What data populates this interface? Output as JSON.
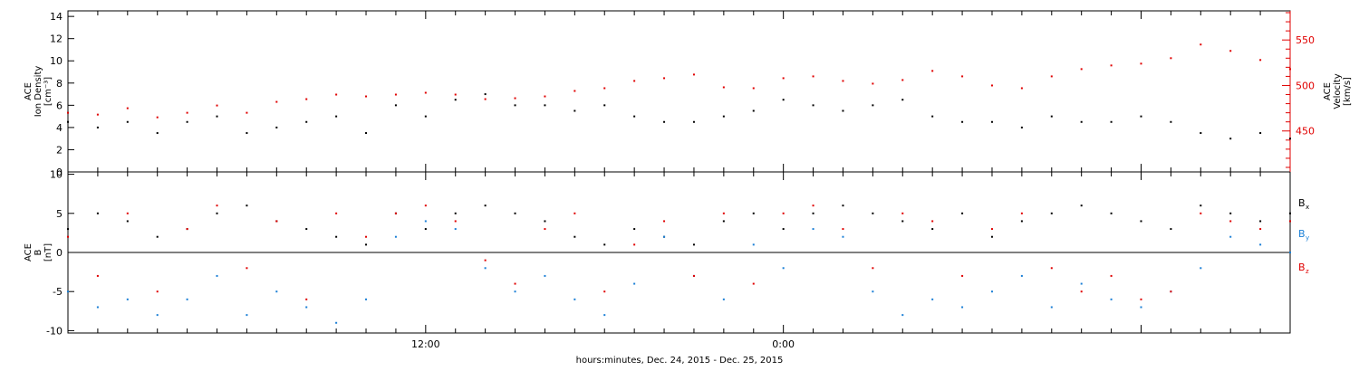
{
  "chart_data": [
    {
      "type": "scatter",
      "panel": "top",
      "left_axis": {
        "label_lines": [
          "ACE",
          "Ion Density",
          "[cm⁻³]"
        ],
        "ylim": [
          0,
          14.5
        ],
        "ticks": [
          "0",
          "2",
          "4",
          "6",
          "8",
          "10",
          "12",
          "14"
        ],
        "tick_values": [
          0,
          2,
          4,
          6,
          8,
          10,
          12,
          14
        ],
        "color": "#000000"
      },
      "right_axis": {
        "label_lines": [
          "ACE",
          "Velocity",
          "[km/s]"
        ],
        "ylim": [
          405,
          582
        ],
        "ticks": [
          "450",
          "500",
          "550"
        ],
        "tick_values": [
          450,
          500,
          550
        ],
        "color": "#e00000"
      },
      "series": [
        {
          "axis": "left",
          "color": "#000000",
          "x": [
            0.0,
            1.0,
            2.0,
            3.0,
            4.0,
            5.0,
            6.0,
            7.0,
            8.0,
            9.0,
            10.0,
            11.0,
            12.0,
            13.0,
            14.0,
            15.0,
            16.0,
            17.0,
            18.0,
            19.0,
            20.0,
            21.0,
            22.0,
            23.0,
            24.0,
            25.0,
            26.0,
            27.0,
            28.0,
            29.0,
            30.0,
            31.0,
            32.0,
            33.0,
            34.0,
            35.0,
            36.0,
            37.0,
            38.0,
            39.0,
            40.0,
            41.0
          ],
          "values": [
            4.5,
            4.0,
            4.5,
            3.5,
            4.5,
            5.0,
            3.5,
            4.0,
            4.5,
            5.0,
            3.5,
            6.0,
            5.0,
            6.5,
            7.0,
            6.0,
            6.0,
            5.5,
            6.0,
            5.0,
            4.5,
            4.5,
            5.0,
            5.5,
            6.5,
            6.0,
            5.5,
            6.0,
            6.5,
            5.0,
            4.5,
            4.5,
            4.0,
            5.0,
            4.5,
            4.5,
            5.0,
            4.5,
            3.5,
            3.0,
            3.5,
            3.0
          ]
        },
        {
          "axis": "right",
          "color": "#e00000",
          "x": [
            0.0,
            1.0,
            2.0,
            3.0,
            4.0,
            5.0,
            6.0,
            7.0,
            8.0,
            9.0,
            10.0,
            11.0,
            12.0,
            13.0,
            14.0,
            15.0,
            16.0,
            17.0,
            18.0,
            19.0,
            20.0,
            21.0,
            22.0,
            23.0,
            24.0,
            25.0,
            26.0,
            27.0,
            28.0,
            29.0,
            30.0,
            31.0,
            32.0,
            33.0,
            34.0,
            35.0,
            36.0,
            37.0,
            38.0,
            39.0,
            40.0,
            41.0
          ],
          "values": [
            470,
            468,
            475,
            465,
            470,
            478,
            470,
            482,
            485,
            490,
            488,
            490,
            492,
            490,
            485,
            486,
            488,
            494,
            497,
            505,
            508,
            512,
            498,
            497,
            508,
            510,
            505,
            502,
            506,
            516,
            510,
            500,
            497,
            510,
            518,
            522,
            524,
            530,
            545,
            538,
            528,
            518
          ]
        }
      ]
    },
    {
      "type": "scatter",
      "panel": "bottom",
      "left_axis": {
        "label_lines": [
          "ACE",
          "B",
          "[nT]"
        ],
        "ylim": [
          -10.3,
          10.3
        ],
        "ticks": [
          "-10",
          "-5",
          "0",
          "5",
          "10"
        ],
        "tick_values": [
          -10,
          -5,
          0,
          5,
          10
        ]
      },
      "zero_line": true,
      "series": [
        {
          "name": "B",
          "sub": "x",
          "color": "#000000",
          "x": [
            0.0,
            1.0,
            2.0,
            3.0,
            4.0,
            5.0,
            6.0,
            7.0,
            8.0,
            9.0,
            10.0,
            11.0,
            12.0,
            13.0,
            14.0,
            15.0,
            16.0,
            17.0,
            18.0,
            19.0,
            20.0,
            21.0,
            22.0,
            23.0,
            24.0,
            25.0,
            26.0,
            27.0,
            28.0,
            29.0,
            30.0,
            31.0,
            32.0,
            33.0,
            34.0,
            35.0,
            36.0,
            37.0,
            38.0,
            39.0,
            40.0,
            41.0
          ],
          "values": [
            3,
            5,
            4,
            2,
            3,
            5,
            6,
            4,
            3,
            2,
            1,
            5,
            3,
            5,
            6,
            5,
            4,
            2,
            1,
            3,
            2,
            1,
            4,
            5,
            3,
            5,
            6,
            5,
            4,
            3,
            5,
            2,
            4,
            5,
            6,
            5,
            4,
            3,
            6,
            5,
            4,
            5
          ]
        },
        {
          "name": "B",
          "sub": "y",
          "color": "#1a7fd6",
          "x": [
            0.0,
            1.0,
            2.0,
            3.0,
            4.0,
            5.0,
            6.0,
            7.0,
            8.0,
            9.0,
            10.0,
            11.0,
            12.0,
            13.0,
            14.0,
            15.0,
            16.0,
            17.0,
            18.0,
            19.0,
            20.0,
            21.0,
            22.0,
            23.0,
            24.0,
            25.0,
            26.0,
            27.0,
            28.0,
            29.0,
            30.0,
            31.0,
            32.0,
            33.0,
            34.0,
            35.0,
            36.0,
            37.0,
            38.0,
            39.0,
            40.0,
            41.0
          ],
          "values": [
            -5,
            -7,
            -6,
            -8,
            -6,
            -3,
            -8,
            -5,
            -7,
            -9,
            -6,
            2,
            4,
            3,
            -2,
            -5,
            -3,
            -6,
            -8,
            -4,
            2,
            -3,
            -6,
            1,
            -2,
            3,
            2,
            -5,
            -8,
            -6,
            -7,
            -5,
            -3,
            -7,
            -4,
            -6,
            -7,
            -5,
            -2,
            2,
            1,
            0
          ]
        },
        {
          "name": "B",
          "sub": "z",
          "color": "#e00000",
          "x": [
            0.0,
            1.0,
            2.0,
            3.0,
            4.0,
            5.0,
            6.0,
            7.0,
            8.0,
            9.0,
            10.0,
            11.0,
            12.0,
            13.0,
            14.0,
            15.0,
            16.0,
            17.0,
            18.0,
            19.0,
            20.0,
            21.0,
            22.0,
            23.0,
            24.0,
            25.0,
            26.0,
            27.0,
            28.0,
            29.0,
            30.0,
            31.0,
            32.0,
            33.0,
            34.0,
            35.0,
            36.0,
            37.0,
            38.0,
            39.0,
            40.0,
            41.0
          ],
          "values": [
            2,
            -3,
            5,
            -5,
            3,
            6,
            -2,
            4,
            -6,
            5,
            2,
            5,
            6,
            4,
            -1,
            -4,
            3,
            5,
            -5,
            1,
            4,
            -3,
            5,
            -4,
            5,
            6,
            3,
            -2,
            5,
            4,
            -3,
            3,
            5,
            -2,
            -5,
            -3,
            -6,
            -5,
            5,
            4,
            3,
            4
          ]
        }
      ]
    }
  ],
  "x_axis": {
    "tick_labels": [
      {
        "hour": 12,
        "label": "12:00"
      },
      {
        "hour": 24,
        "label": "0:00"
      }
    ],
    "xlabel": "hours:minutes, Dec. 24, 2015 - Dec. 25, 2015"
  }
}
